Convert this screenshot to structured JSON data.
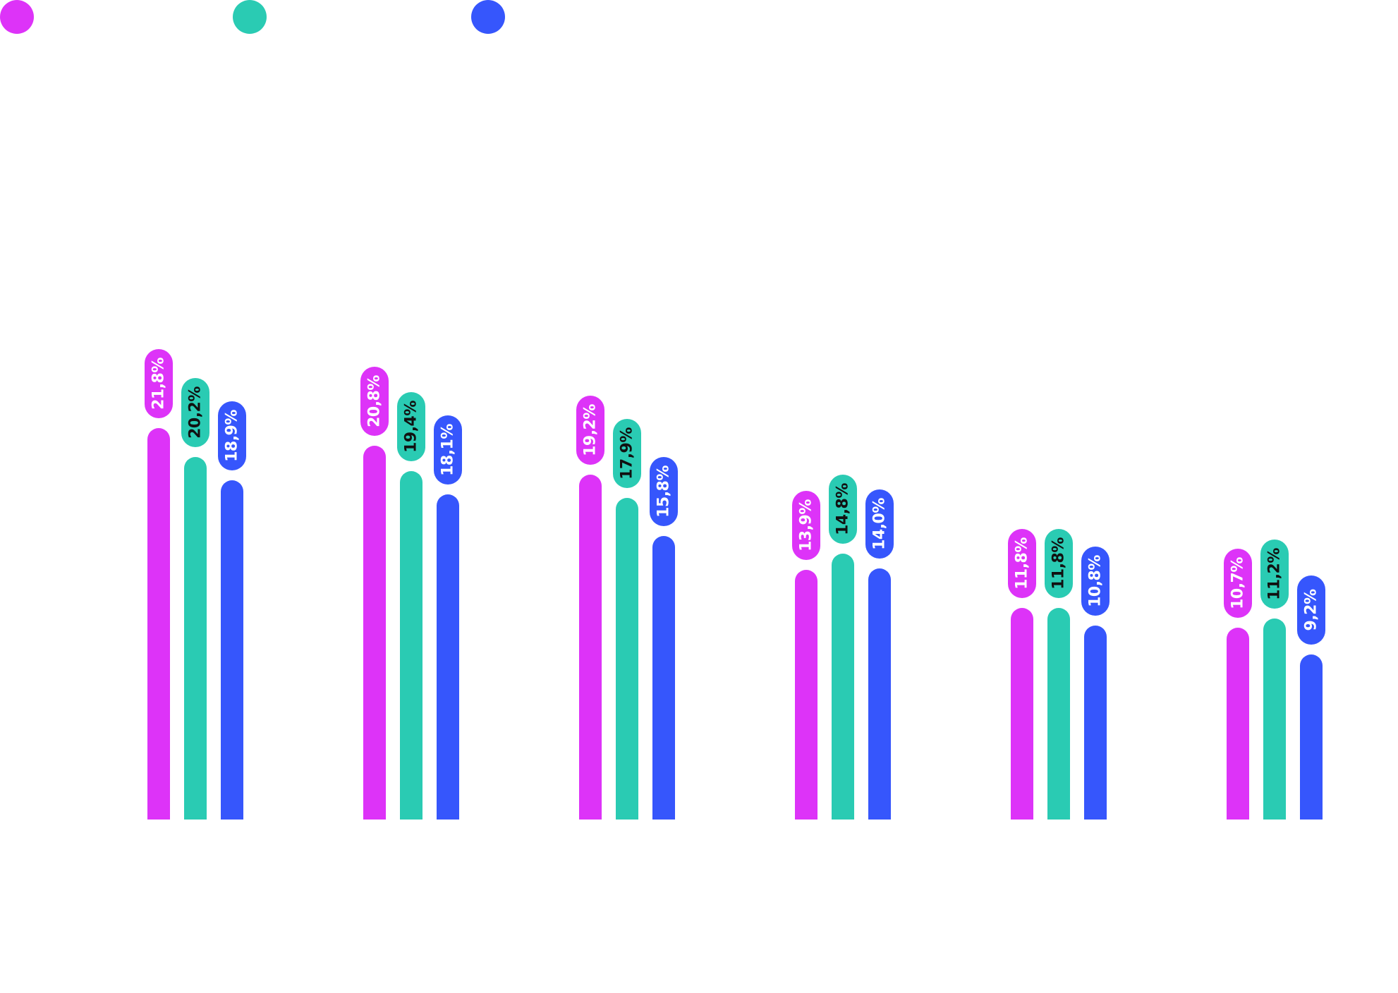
{
  "chart_data": {
    "type": "bar",
    "categories": [
      "",
      "",
      "",
      "",
      "",
      ""
    ],
    "series": [
      {
        "name": "",
        "color": "#dd33f8",
        "label_color": "#ffffff",
        "values": [
          21.8,
          20.8,
          19.2,
          13.9,
          11.8,
          10.7
        ],
        "labels": [
          "21,8%",
          "20,8%",
          "19,2%",
          "13,9%",
          "11,8%",
          "10,7%"
        ]
      },
      {
        "name": "",
        "color": "#2acbb3",
        "label_color": "#111111",
        "values": [
          20.2,
          19.4,
          17.9,
          14.8,
          11.8,
          11.2
        ],
        "labels": [
          "20,2%",
          "19,4%",
          "17,9%",
          "14,8%",
          "11,8%",
          "11,2%"
        ]
      },
      {
        "name": "",
        "color": "#3656fc",
        "label_color": "#ffffff",
        "values": [
          18.9,
          18.1,
          15.8,
          14.0,
          10.8,
          9.2
        ],
        "labels": [
          "18,9%",
          "18,1%",
          "15,8%",
          "14,0%",
          "10,8%",
          "9,2%"
        ]
      }
    ],
    "title": "",
    "xlabel": "",
    "ylabel": "",
    "ylim": [
      0,
      21.8
    ],
    "grid": false,
    "legend": "top-left"
  }
}
